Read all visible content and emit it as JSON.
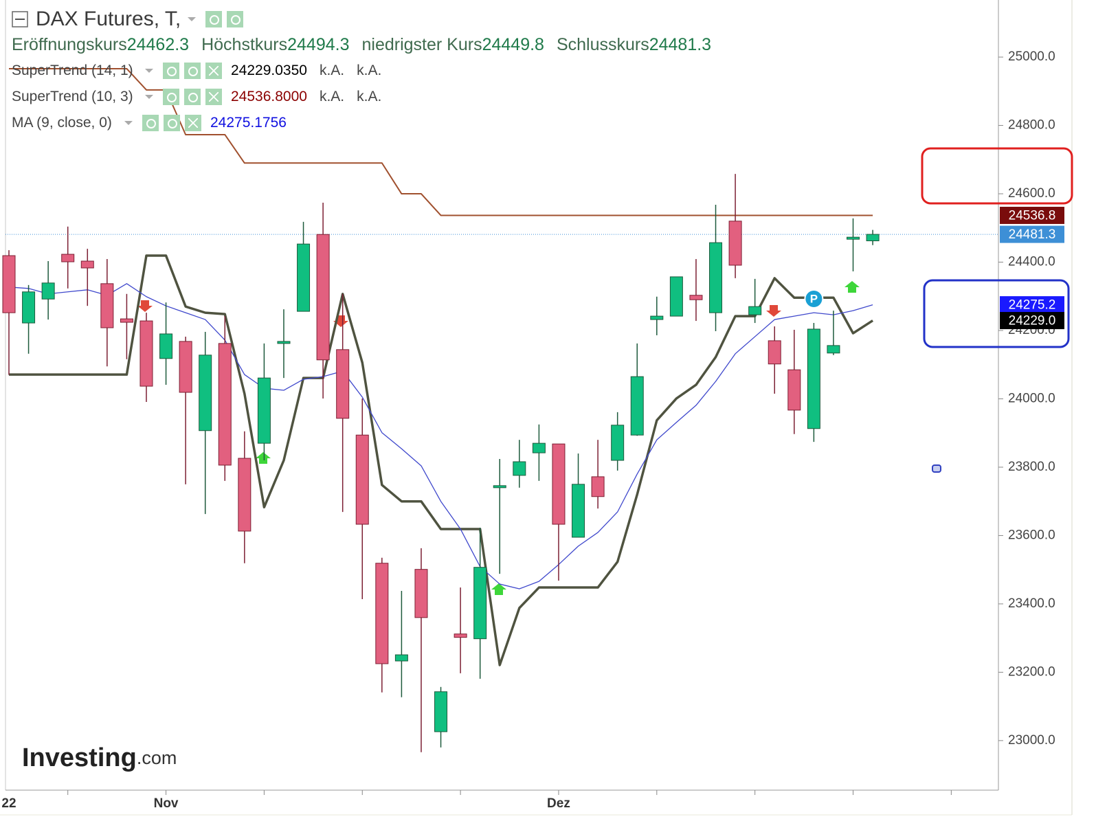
{
  "header": {
    "title": "DAX Futures, T,"
  },
  "chart_data": {
    "type": "candlestick",
    "categories": [
      "22",
      null,
      null,
      null,
      null,
      null,
      null,
      null,
      "Nov",
      null,
      null,
      null,
      null,
      null,
      null,
      null,
      null,
      null,
      null,
      null,
      null,
      null,
      null,
      null,
      null,
      null,
      null,
      null,
      "Dez",
      null,
      null,
      null,
      null,
      null,
      null,
      null,
      null,
      null,
      null,
      null,
      null,
      null,
      null,
      null,
      null
    ],
    "open": [
      24419,
      24222,
      24292,
      24423,
      24403,
      24337,
      24234,
      24228,
      24118,
      24168,
      23907,
      24162,
      23826,
      23870,
      24162,
      24256,
      24481,
      24144,
      23894,
      23519,
      23233,
      23501,
      23026,
      23312,
      23298,
      23740,
      23776,
      23842,
      23868,
      23595,
      23772,
      23820,
      23894,
      24232,
      24242,
      24303,
      24252,
      24520,
      24246,
      24170,
      24085,
      23913,
      24134,
      24467,
      24462.3
    ],
    "high": [
      24435,
      24333,
      24403,
      24504,
      24439,
      24409,
      24307,
      24252,
      24282,
      24182,
      24196,
      24242,
      23905,
      24162,
      24262,
      24518,
      24574,
      24307,
      24001,
      23535,
      23438,
      23563,
      23157,
      23448,
      23623,
      23824,
      23880,
      23925,
      23868,
      23840,
      23880,
      23961,
      24162,
      24299,
      24357,
      24409,
      24568,
      24658,
      24351,
      24212,
      24202,
      24222,
      24258,
      24528,
      24494.3
    ],
    "low": [
      24070,
      24132,
      24232,
      24323,
      24272,
      24095,
      24116,
      23991,
      24041,
      23750,
      23663,
      23760,
      23519,
      23820,
      24061,
      24256,
      24001,
      23669,
      23414,
      23141,
      23127,
      22966,
      22980,
      23197,
      23181,
      23488,
      23740,
      23760,
      23468,
      23595,
      23679,
      23790,
      23892,
      24186,
      24242,
      24228,
      24198,
      24353,
      24222,
      24015,
      23897,
      23874,
      24128,
      24373,
      24449.8
    ],
    "close": [
      24252,
      24313,
      24339,
      24401,
      24383,
      24208,
      24224,
      24037,
      24190,
      24019,
      24128,
      23806,
      23613,
      24061,
      24168,
      24453,
      24114,
      23943,
      23633,
      23225,
      23251,
      23360,
      23143,
      23302,
      23507,
      23746,
      23816,
      23870,
      23633,
      23750,
      23714,
      23923,
      24065,
      24242,
      24357,
      24290,
      24457,
      24391,
      24270,
      24102,
      23967,
      24204,
      24156,
      24473,
      24481.3
    ],
    "ohlc_labels": [
      "Eröffnungskurs",
      "Höchstkurs",
      "niedrigster Kurs",
      "Schlusskurs"
    ],
    "colors": {
      "up": "#10bf80",
      "up_outline": "#1d5a3c",
      "down": "#e2607f",
      "down_outline": "#7c1f33"
    },
    "series": [
      {
        "name": "SuperTrend (14, 1)",
        "color": "#4f5340",
        "values": [
          24071,
          24071,
          24071,
          24071,
          24071,
          24071,
          24071,
          24419,
          24419,
          24270,
          24252,
          24248,
          24015,
          23683,
          23820,
          24061,
          24061,
          24307,
          24106,
          23748,
          23700,
          23700,
          23619,
          23619,
          23619,
          23221,
          23388,
          23448,
          23448,
          23448,
          23448,
          23523,
          23720,
          23937,
          24001,
          24041,
          24122,
          24242,
          24242,
          24353,
          24296,
          24296,
          24296,
          24192,
          24229.035
        ],
        "value_labels": [
          null,
          null,
          null,
          null,
          null,
          null,
          null,
          null,
          null,
          null,
          null,
          null,
          null,
          null,
          null,
          null,
          null,
          null,
          null,
          null,
          null,
          null,
          null,
          null,
          null,
          null,
          null,
          null,
          null,
          null,
          null,
          null,
          null,
          null,
          null,
          null,
          null,
          null,
          null,
          null,
          null,
          null,
          null,
          null,
          "24229.0350"
        ],
        "status": [
          "k.A.",
          "k.A."
        ]
      },
      {
        "name": "SuperTrend (10, 3)",
        "color": "#a0502e",
        "values": [
          24966,
          24966,
          24966,
          24966,
          24966,
          24966,
          24966,
          24904,
          24904,
          24773,
          24773,
          24773,
          24690,
          24690,
          24690,
          24690,
          24690,
          24690,
          24690,
          24690,
          24600,
          24600,
          24536.8,
          24536.8,
          24536.8,
          24536.8,
          24536.8,
          24536.8,
          24536.8,
          24536.8,
          24536.8,
          24536.8,
          24536.8,
          24536.8,
          24536.8,
          24536.8,
          24536.8,
          24536.8,
          24536.8,
          24536.8,
          24536.8,
          24536.8,
          24536.8,
          24536.8,
          24536.8
        ],
        "value_labels": [
          null,
          null,
          null,
          null,
          null,
          null,
          null,
          null,
          null,
          null,
          null,
          null,
          null,
          null,
          null,
          null,
          null,
          null,
          null,
          null,
          null,
          null,
          null,
          null,
          null,
          null,
          null,
          null,
          null,
          null,
          null,
          null,
          null,
          null,
          null,
          null,
          null,
          null,
          null,
          null,
          null,
          null,
          null,
          null,
          "24536.8000"
        ],
        "status": [
          "k.A.",
          "k.A."
        ]
      },
      {
        "name": "MA (9, close, 0)",
        "color": "#3f48cc",
        "values": [
          24327,
          24323,
          24307,
          24313,
          24319,
          24303,
          24337,
          24299,
          24272,
          24252,
          24232,
          24172,
          24071,
          24031,
          24025,
          24057,
          24065,
          24081,
          24005,
          23901,
          23854,
          23804,
          23700,
          23619,
          23509,
          23458,
          23444,
          23466,
          23515,
          23569,
          23609,
          23669,
          23780,
          23880,
          23931,
          23981,
          24051,
          24132,
          24182,
          24232,
          24242,
          24252,
          24246,
          24258,
          24275.1756
        ]
      }
    ],
    "ylim": [
      22855,
      25167
    ],
    "yticks": [
      {
        "value": 23000,
        "label": "23000.0"
      },
      {
        "value": 23200,
        "label": "23200.0"
      },
      {
        "value": 23400,
        "label": "23400.0"
      },
      {
        "value": 23600,
        "label": "23600.0"
      },
      {
        "value": 23800,
        "label": "23800.0"
      },
      {
        "value": 24000,
        "label": "24000.0"
      },
      {
        "value": 24200,
        "label": "24200.0"
      },
      {
        "value": 24400,
        "label": "24400.0"
      },
      {
        "value": 24600,
        "label": "24600.0"
      },
      {
        "value": 24800,
        "label": "24800.0"
      },
      {
        "value": 25000,
        "label": "25000.0"
      }
    ],
    "price_labels": [
      {
        "value": 24536.8,
        "color": "#7a0c0c"
      },
      {
        "value": 24481.3,
        "color": "#3d8fd6"
      },
      {
        "value": 24275.2,
        "color": "#1a1aff"
      },
      {
        "value": 24229,
        "label": "24229.0",
        "color": "#000000"
      }
    ],
    "annotations": [
      "P"
    ],
    "grid": false
  },
  "logo": {
    "name": "Investing",
    "domain": ".com"
  }
}
